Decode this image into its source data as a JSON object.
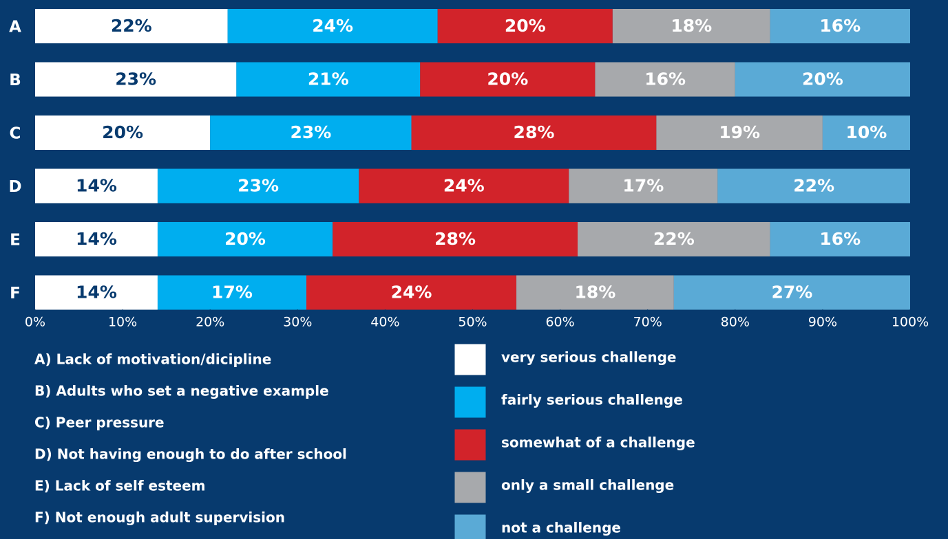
{
  "chart_data": {
    "type": "stacked_barh",
    "categories": [
      "A",
      "B",
      "C",
      "D",
      "E",
      "F"
    ],
    "category_descriptions": [
      "A) Lack of motivation/dicipline",
      "B) Adults who set a negative example",
      "C) Peer pressure",
      "D) Not having enough to do after school",
      "E) Lack of self esteem",
      "F) Not enough adult supervision"
    ],
    "series": [
      {
        "name": "very serious challenge",
        "color": "#ffffff",
        "label_color": "#073a6e",
        "values": [
          22,
          23,
          20,
          14,
          14,
          14
        ],
        "value_labels": [
          "22%",
          "23%",
          "20%",
          "14%",
          "14%",
          "14%"
        ]
      },
      {
        "name": "fairly serious challenge",
        "color": "#00aeef",
        "label_color": "#ffffff",
        "values": [
          24,
          21,
          23,
          23,
          20,
          17
        ],
        "value_labels": [
          "24%",
          "21%",
          "23%",
          "23%",
          "20%",
          "17%"
        ]
      },
      {
        "name": "somewhat of a challenge",
        "color": "#d2232a",
        "label_color": "#ffffff",
        "values": [
          20,
          20,
          28,
          24,
          28,
          24
        ],
        "value_labels": [
          "20%",
          "20%",
          "28%",
          "24%",
          "28%",
          "24%"
        ]
      },
      {
        "name": "only a small challenge",
        "color": "#a7a9ac",
        "label_color": "#ffffff",
        "values": [
          18,
          16,
          19,
          17,
          22,
          18
        ],
        "value_labels": [
          "18%",
          "16%",
          "19%",
          "17%",
          "22%",
          "18%"
        ]
      },
      {
        "name": "not a challenge",
        "color": "#5aaad6",
        "label_color": "#ffffff",
        "values": [
          16,
          20,
          10,
          22,
          16,
          27
        ],
        "value_labels": [
          "16%",
          "20%",
          "10%",
          "22%",
          "16%",
          "27%"
        ]
      }
    ],
    "xlim": [
      0,
      100
    ],
    "xticks": [
      {
        "value": 0,
        "label": "0%"
      },
      {
        "value": 10,
        "label": "10%"
      },
      {
        "value": 20,
        "label": "20%"
      },
      {
        "value": 30,
        "label": "30%"
      },
      {
        "value": 40,
        "label": "40%"
      },
      {
        "value": 50,
        "label": "50%"
      },
      {
        "value": 60,
        "label": "60%"
      },
      {
        "value": 70,
        "label": "70%"
      },
      {
        "value": 80,
        "label": "80%"
      },
      {
        "value": 90,
        "label": "90%"
      },
      {
        "value": 100,
        "label": "100%"
      }
    ]
  }
}
